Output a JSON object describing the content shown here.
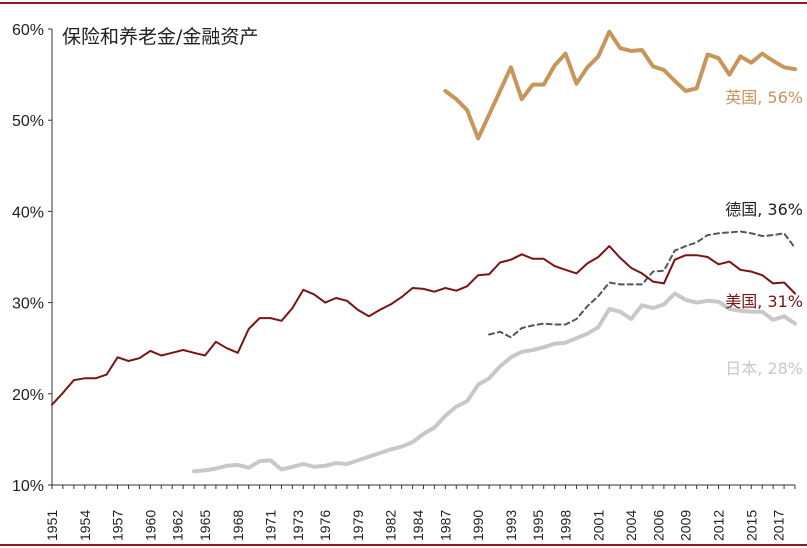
{
  "chart_data": {
    "type": "line",
    "title": "保险和养老金/金融资产",
    "xlabel": "",
    "ylabel": "",
    "ylim": [
      10,
      60
    ],
    "xlim": [
      1951,
      2019
    ],
    "y_ticks": [
      "10%",
      "20%",
      "30%",
      "40%",
      "50%",
      "60%"
    ],
    "y_tick_values": [
      10,
      20,
      30,
      40,
      50,
      60
    ],
    "x_ticks": [
      "1951",
      "1954",
      "1957",
      "1960",
      "1962",
      "1965",
      "1968",
      "1971",
      "1973",
      "1976",
      "1979",
      "1982",
      "1984",
      "1987",
      "1990",
      "1993",
      "1995",
      "1998",
      "2001",
      "2004",
      "2006",
      "2009",
      "2012",
      "2015",
      "2017"
    ],
    "x_tick_values": [
      1951,
      1954,
      1957,
      1960,
      1962.5,
      1965,
      1968,
      1971,
      1973.5,
      1976,
      1979,
      1982,
      1984.5,
      1987,
      1990,
      1993,
      1995.5,
      1998,
      2001,
      2004,
      2006.5,
      2009,
      2012,
      2015,
      2017.5
    ],
    "grid": false,
    "legend": "inline labels at line ends",
    "series": [
      {
        "name": "英国, 56%",
        "color": "#c8955a",
        "style": "solid",
        "width": 4,
        "x": [
          1987,
          1988,
          1989,
          1990,
          1991,
          1992,
          1993,
          1994,
          1995,
          1996,
          1997,
          1998,
          1999,
          2000,
          2001,
          2002,
          2003,
          2004,
          2005,
          2006,
          2007,
          2008,
          2009,
          2010,
          2011,
          2012,
          2013,
          2014,
          2015,
          2016,
          2017,
          2018,
          2019
        ],
        "values": [
          53.2,
          52.3,
          51.1,
          48.0,
          50.6,
          53.2,
          55.8,
          52.3,
          53.9,
          53.9,
          56.0,
          57.3,
          54.0,
          55.8,
          57.0,
          59.7,
          57.9,
          57.6,
          57.7,
          55.9,
          55.5,
          54.3,
          53.2,
          53.5,
          57.2,
          56.8,
          55.0,
          57.0,
          56.3,
          57.3,
          56.5,
          55.8,
          55.6
        ]
      },
      {
        "name": "德国, 36%",
        "color": "#555555",
        "style": "dashed",
        "width": 2,
        "x": [
          1991,
          1992,
          1993,
          1994,
          1995,
          1996,
          1997,
          1998,
          1999,
          2000,
          2001,
          2002,
          2003,
          2004,
          2005,
          2006,
          2007,
          2008,
          2009,
          2010,
          2011,
          2012,
          2013,
          2014,
          2015,
          2016,
          2017,
          2018,
          2019
        ],
        "values": [
          26.5,
          26.8,
          26.2,
          27.2,
          27.5,
          27.7,
          27.6,
          27.6,
          28.2,
          29.6,
          30.7,
          32.2,
          32.0,
          32.0,
          32.0,
          33.4,
          33.5,
          35.7,
          36.2,
          36.6,
          37.4,
          37.6,
          37.7,
          37.8,
          37.6,
          37.3,
          37.4,
          37.6,
          36.0
        ]
      },
      {
        "name": "美国, 31%",
        "color": "#7a1414",
        "style": "solid",
        "width": 2,
        "x": [
          1951,
          1952,
          1953,
          1954,
          1955,
          1956,
          1957,
          1958,
          1959,
          1960,
          1961,
          1962,
          1963,
          1964,
          1965,
          1966,
          1967,
          1968,
          1969,
          1970,
          1971,
          1972,
          1973,
          1974,
          1975,
          1976,
          1977,
          1978,
          1979,
          1980,
          1981,
          1982,
          1983,
          1984,
          1985,
          1986,
          1987,
          1988,
          1989,
          1990,
          1991,
          1992,
          1993,
          1994,
          1995,
          1996,
          1997,
          1998,
          1999,
          2000,
          2001,
          2002,
          2003,
          2004,
          2005,
          2006,
          2007,
          2008,
          2009,
          2010,
          2011,
          2012,
          2013,
          2014,
          2015,
          2016,
          2017,
          2018,
          2019
        ],
        "values": [
          18.8,
          20.1,
          21.5,
          21.7,
          21.7,
          22.1,
          24.0,
          23.6,
          23.9,
          24.7,
          24.2,
          24.5,
          24.8,
          24.5,
          24.2,
          25.7,
          25.0,
          24.5,
          27.1,
          28.3,
          28.3,
          28.0,
          29.4,
          31.4,
          30.9,
          30.0,
          30.5,
          30.2,
          29.2,
          28.5,
          29.2,
          29.8,
          30.6,
          31.6,
          31.5,
          31.2,
          31.6,
          31.3,
          31.8,
          33.0,
          33.1,
          34.4,
          34.7,
          35.3,
          34.8,
          34.8,
          34.0,
          33.6,
          33.2,
          34.3,
          35.0,
          36.2,
          34.9,
          33.8,
          33.2,
          32.3,
          32.1,
          34.7,
          35.2,
          35.2,
          35.0,
          34.2,
          34.5,
          33.6,
          33.4,
          33.0,
          32.1,
          32.2,
          31.0
        ]
      },
      {
        "name": "日本, 28%",
        "color": "#c8c8c8",
        "style": "solid",
        "width": 4,
        "x": [
          1964,
          1965,
          1966,
          1967,
          1968,
          1969,
          1970,
          1971,
          1972,
          1973,
          1974,
          1975,
          1976,
          1977,
          1978,
          1979,
          1980,
          1981,
          1982,
          1983,
          1984,
          1985,
          1986,
          1987,
          1988,
          1989,
          1990,
          1991,
          1992,
          1993,
          1994,
          1995,
          1996,
          1997,
          1998,
          1999,
          2000,
          2001,
          2002,
          2003,
          2004,
          2005,
          2006,
          2007,
          2008,
          2009,
          2010,
          2011,
          2012,
          2013,
          2014,
          2015,
          2016,
          2017,
          2018,
          2019
        ],
        "values": [
          11.5,
          11.6,
          11.8,
          12.1,
          12.2,
          11.9,
          12.6,
          12.7,
          11.7,
          12.0,
          12.3,
          12.0,
          12.1,
          12.4,
          12.3,
          12.7,
          13.1,
          13.5,
          13.9,
          14.2,
          14.7,
          15.6,
          16.3,
          17.6,
          18.6,
          19.2,
          21.0,
          21.7,
          23.0,
          24.0,
          24.6,
          24.8,
          25.1,
          25.5,
          25.6,
          26.1,
          26.6,
          27.3,
          29.3,
          29.0,
          28.2,
          29.7,
          29.4,
          29.8,
          31.0,
          30.3,
          30.0,
          30.2,
          30.1,
          29.3,
          29.1,
          29.0,
          29.0,
          28.1,
          28.5,
          27.7
        ]
      }
    ]
  }
}
